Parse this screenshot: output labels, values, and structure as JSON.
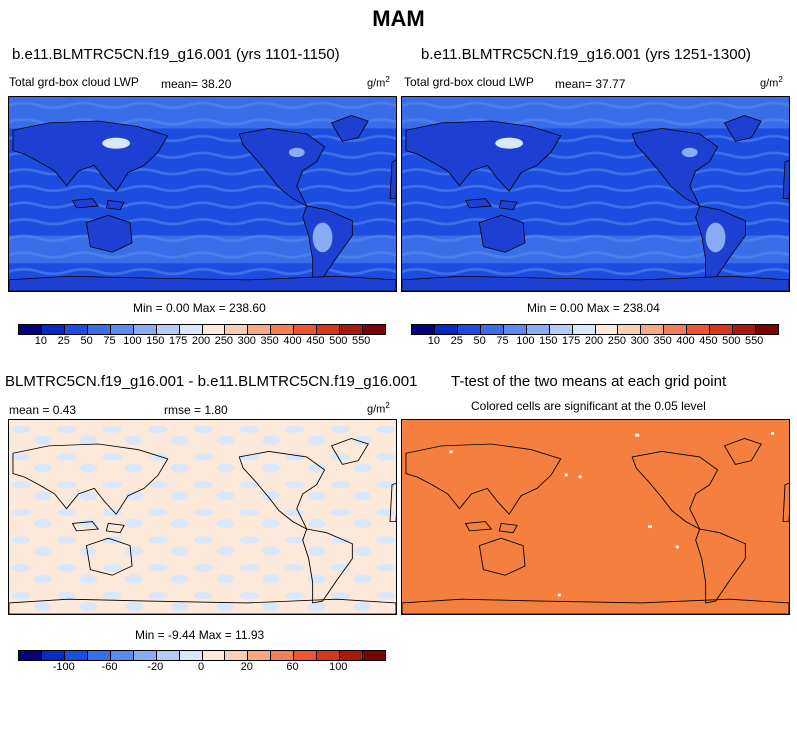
{
  "title": "MAM",
  "units_base": "g/m",
  "units_exp": "2",
  "panels": {
    "a": {
      "run": "b.e11.BLMTRC5CN.f19_g16.001 (yrs 1101-1150)",
      "field": "Total grd-box cloud LWP",
      "mean": "mean=  38.20",
      "minmax": "Min =  0.00 Max = 238.60"
    },
    "b": {
      "run": "b.e11.BLMTRC5CN.f19_g16.001 (yrs 1251-1300)",
      "field": "Total grd-box cloud LWP",
      "mean": "mean=  37.77",
      "minmax": "Min =  0.00 Max = 238.04"
    },
    "c": {
      "run": "BLMTRC5CN.f19_g16.001 - b.e11.BLMTRC5CN.f19_g16.001",
      "mean": "mean =   0.43",
      "rmse": "rmse =   1.80",
      "minmax": "Min =  -9.44 Max =  11.93"
    },
    "d": {
      "run": "T-test of the two means at each grid point",
      "subtitle": "Colored cells are significant at the 0.05 level"
    }
  },
  "colorbar_lwp": {
    "labels": [
      "10",
      "25",
      "50",
      "75",
      "100",
      "150",
      "175",
      "200",
      "250",
      "300",
      "350",
      "400",
      "450",
      "500",
      "550"
    ],
    "colors": [
      "#02057a",
      "#0a2bc1",
      "#1c4ce0",
      "#3a6ee8",
      "#5a8bef",
      "#89adf4",
      "#b4cdf8",
      "#d9e7fb",
      "#fde9d9",
      "#fbd0b2",
      "#f7a982",
      "#f47f57",
      "#ee5631",
      "#d8371c",
      "#a8190e",
      "#7a0404"
    ]
  },
  "colorbar_diff": {
    "labels": [
      "-100",
      "-60",
      "-20",
      "0",
      "20",
      "60",
      "100"
    ],
    "colors": [
      "#02057a",
      "#0a2bc1",
      "#1c4ce0",
      "#3a6ee8",
      "#5a8bef",
      "#89adf4",
      "#b4cdf8",
      "#d9e7fb",
      "#fde9d9",
      "#fbd0b2",
      "#f7a982",
      "#f47f57",
      "#ee5631",
      "#d8371c",
      "#a8190e",
      "#7a0404"
    ]
  },
  "chart_data": [
    {
      "type": "heatmap",
      "title": "b.e11.BLMTRC5CN.f19_g16.001 (yrs 1101-1150)",
      "variable": "Total grd-box cloud LWP",
      "units": "g/m2",
      "mean": 38.2,
      "min": 0.0,
      "max": 238.6,
      "contour_levels": [
        10,
        25,
        50,
        75,
        100,
        150,
        175,
        200,
        250,
        300,
        350,
        400,
        450,
        500,
        550
      ]
    },
    {
      "type": "heatmap",
      "title": "b.e11.BLMTRC5CN.f19_g16.001 (yrs 1251-1300)",
      "variable": "Total grd-box cloud LWP",
      "units": "g/m2",
      "mean": 37.77,
      "min": 0.0,
      "max": 238.04,
      "contour_levels": [
        10,
        25,
        50,
        75,
        100,
        150,
        175,
        200,
        250,
        300,
        350,
        400,
        450,
        500,
        550
      ]
    },
    {
      "type": "heatmap",
      "title": "BLMTRC5CN.f19_g16.001 - b.e11.BLMTRC5CN.f19_g16.001",
      "units": "g/m2",
      "mean": 0.43,
      "rmse": 1.8,
      "min": -9.44,
      "max": 11.93,
      "contour_levels": [
        -100,
        -60,
        -20,
        0,
        20,
        60,
        100
      ]
    },
    {
      "type": "heatmap",
      "title": "T-test of the two means at each grid point",
      "subtitle": "Colored cells are significant at the 0.05 level"
    }
  ]
}
